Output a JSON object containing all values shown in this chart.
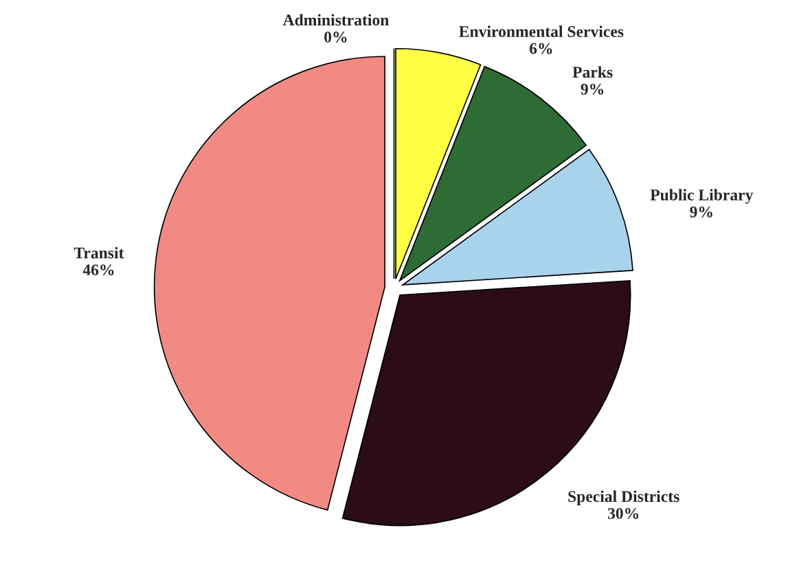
{
  "chart_data": {
    "type": "pie",
    "categories": [
      "Administration",
      "Environmental Services",
      "Parks",
      "Public Library",
      "Special Districts",
      "Transit"
    ],
    "values": [
      0,
      6,
      9,
      9,
      30,
      46
    ],
    "value_labels": [
      "0%",
      "6%",
      "9%",
      "9%",
      "30%",
      "46%"
    ],
    "colors": [
      "#8a9fd6",
      "#ffff44",
      "#2f6b34",
      "#a9d2ec",
      "#2c0c17",
      "#f28a84"
    ]
  }
}
